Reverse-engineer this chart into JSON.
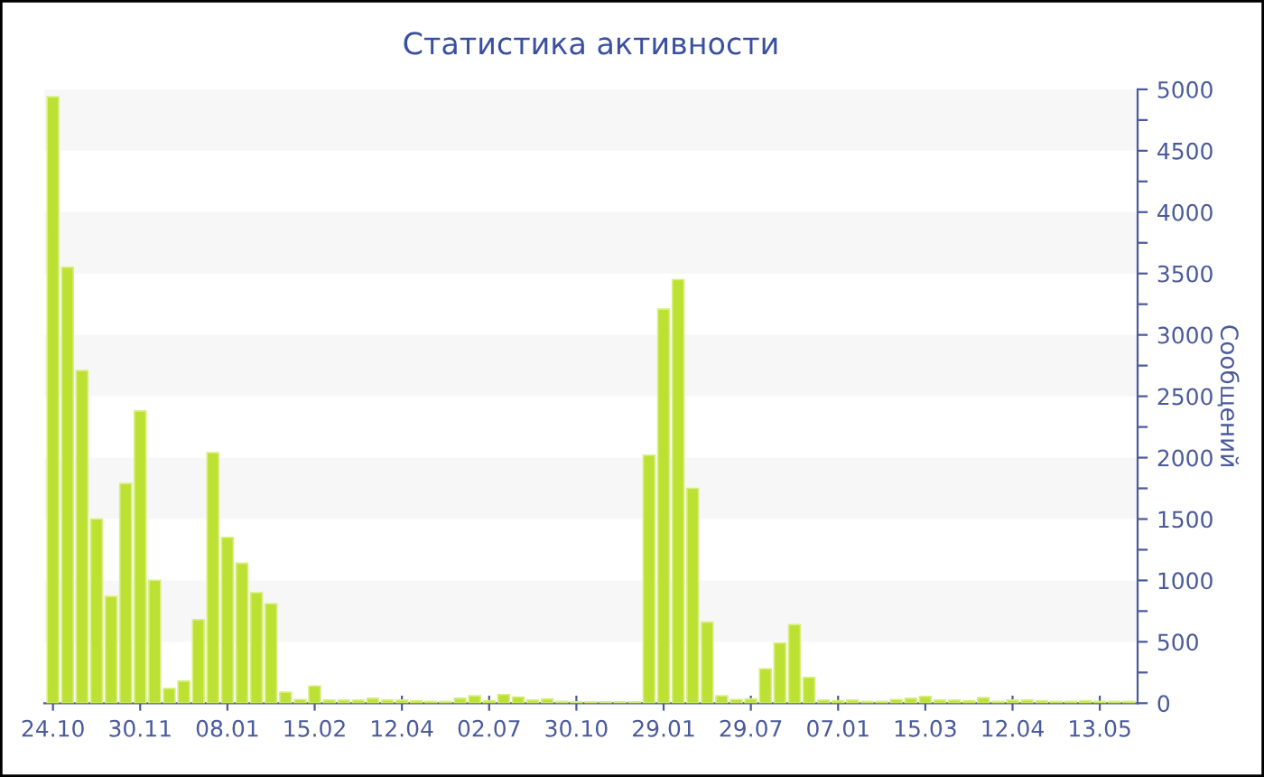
{
  "chart_data": {
    "type": "bar",
    "title": "Статистика активности",
    "ylabel": "Сообщений",
    "categories": [
      "24.10",
      null,
      null,
      null,
      null,
      null,
      "30.11",
      null,
      null,
      null,
      null,
      null,
      "08.01",
      null,
      null,
      null,
      null,
      null,
      "15.02",
      null,
      null,
      null,
      null,
      null,
      "12.04",
      null,
      null,
      null,
      null,
      null,
      "02.07",
      null,
      null,
      null,
      null,
      null,
      "30.10",
      null,
      null,
      null,
      null,
      null,
      "29.01",
      null,
      null,
      null,
      null,
      null,
      "29.07",
      null,
      null,
      null,
      null,
      null,
      "07.01",
      null,
      null,
      null,
      null,
      null,
      "15.03",
      null,
      null,
      null,
      null,
      null,
      "12.04",
      null,
      null,
      null,
      null,
      null,
      "13.05",
      null,
      null
    ],
    "values": [
      4940,
      3550,
      2710,
      1500,
      870,
      1790,
      2380,
      1000,
      120,
      180,
      680,
      2040,
      1350,
      1140,
      900,
      810,
      90,
      30,
      140,
      25,
      25,
      25,
      40,
      25,
      25,
      20,
      15,
      15,
      40,
      60,
      20,
      70,
      50,
      25,
      35,
      15,
      10,
      10,
      10,
      10,
      10,
      2020,
      3210,
      3450,
      1750,
      660,
      60,
      30,
      35,
      280,
      490,
      640,
      210,
      25,
      20,
      25,
      15,
      15,
      30,
      40,
      55,
      25,
      25,
      20,
      45,
      15,
      25,
      25,
      20,
      15,
      15,
      20,
      15,
      15,
      15
    ],
    "color": "#bde132",
    "ylim": [
      0,
      5000
    ],
    "yticks": [
      0,
      {
        "value": 250,
        "label": null
      },
      500,
      {
        "value": 750,
        "label": null
      },
      1000,
      {
        "value": 1250,
        "label": null
      },
      1500,
      {
        "value": 1750,
        "label": null
      },
      2000,
      {
        "value": 2250,
        "label": null
      },
      2500,
      {
        "value": 2750,
        "label": null
      },
      3000,
      {
        "value": 3250,
        "label": null
      },
      3500,
      {
        "value": 3750,
        "label": null
      },
      4000,
      {
        "value": 4250,
        "label": null
      },
      4500,
      {
        "value": 4750,
        "label": null
      },
      5000
    ],
    "bands": [
      {
        "axis": "y",
        "from": 500,
        "to": 1000,
        "color": "#f7f7f7"
      },
      {
        "axis": "y",
        "from": 1500,
        "to": 2000,
        "color": "#f7f7f7"
      },
      {
        "axis": "y",
        "from": 2500,
        "to": 3000,
        "color": "#f7f7f7"
      },
      {
        "axis": "y",
        "from": 3500,
        "to": 4000,
        "color": "#f7f7f7"
      },
      {
        "axis": "y",
        "from": 4500,
        "to": 5000,
        "color": "#f7f7f7"
      }
    ],
    "grid": false
  }
}
